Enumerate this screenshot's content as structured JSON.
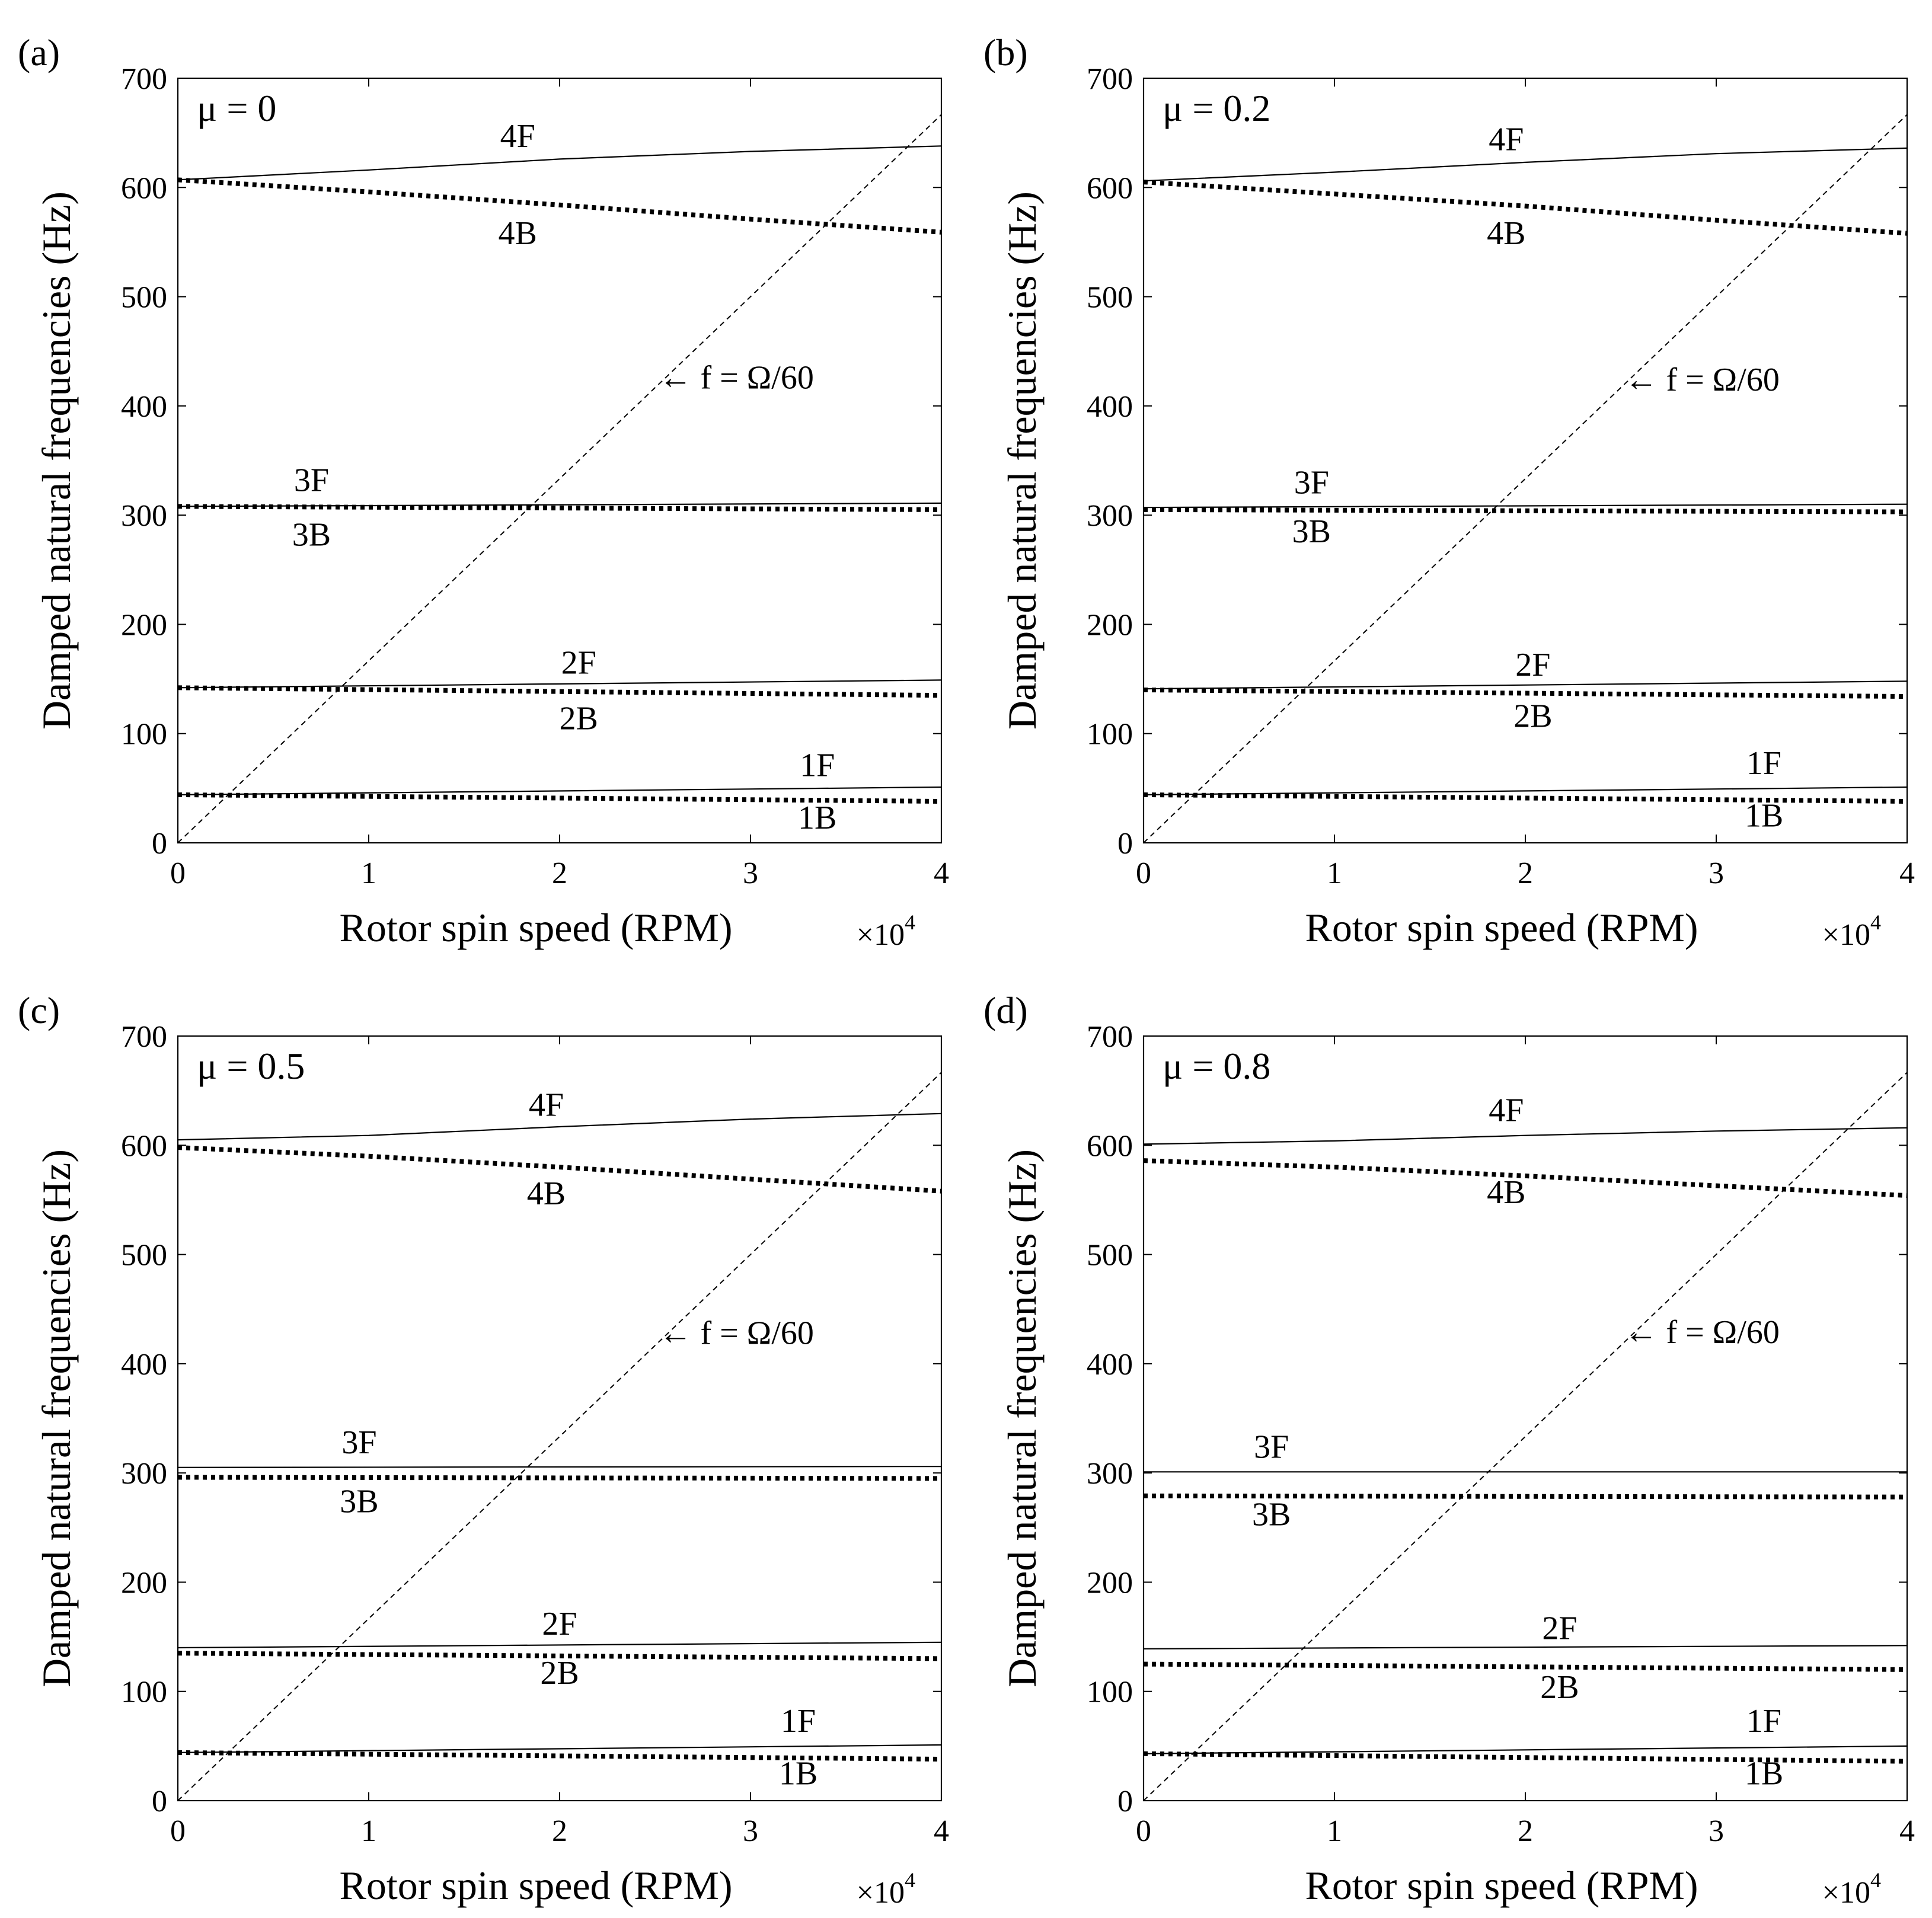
{
  "figure_title": "",
  "chart_data": [
    {
      "type": "line",
      "panel_label": "(a)",
      "mu_label": "μ = 0",
      "xlabel": "Rotor spin speed (RPM)",
      "ylabel": "Damped natural frequencies (Hz)",
      "x_multiplier_label": "×10",
      "x_multiplier_exp": "4",
      "xlim": [
        0,
        40000
      ],
      "ylim": [
        0,
        700
      ],
      "xtick_values": [
        0,
        10000,
        20000,
        30000,
        40000
      ],
      "xtick_labels": [
        "0",
        "1",
        "2",
        "3",
        "4"
      ],
      "ytick_values": [
        0,
        100,
        200,
        300,
        400,
        500,
        600,
        700
      ],
      "ytick_labels": [
        "0",
        "100",
        "200",
        "300",
        "400",
        "500",
        "600",
        "700"
      ],
      "series": [
        {
          "name": "4F",
          "style": "solid",
          "x": [
            0,
            10000,
            20000,
            30000,
            40000
          ],
          "values": [
            607,
            616,
            626,
            633,
            638
          ]
        },
        {
          "name": "4B",
          "style": "dotted",
          "x": [
            0,
            10000,
            20000,
            30000,
            40000
          ],
          "values": [
            607,
            596,
            584,
            571,
            559
          ]
        },
        {
          "name": "3F",
          "style": "solid",
          "x": [
            0,
            40000
          ],
          "values": [
            308,
            311
          ]
        },
        {
          "name": "3B",
          "style": "dotted",
          "x": [
            0,
            40000
          ],
          "values": [
            308,
            305
          ]
        },
        {
          "name": "2F",
          "style": "solid",
          "x": [
            0,
            40000
          ],
          "values": [
            142,
            149
          ]
        },
        {
          "name": "2B",
          "style": "dotted",
          "x": [
            0,
            40000
          ],
          "values": [
            142,
            135
          ]
        },
        {
          "name": "1F",
          "style": "solid",
          "x": [
            0,
            40000
          ],
          "values": [
            44,
            51
          ]
        },
        {
          "name": "1B",
          "style": "dotted",
          "x": [
            0,
            40000
          ],
          "values": [
            44,
            38
          ]
        },
        {
          "name": "f = Ω/60",
          "style": "dashed",
          "x": [
            0,
            40000
          ],
          "values": [
            0,
            666.7
          ]
        }
      ],
      "annotations": [
        {
          "text": "4F",
          "x": 17800,
          "y": 637
        },
        {
          "text": "4B",
          "x": 17800,
          "y": 548
        },
        {
          "text": "3F",
          "x": 7000,
          "y": 322
        },
        {
          "text": "3B",
          "x": 7000,
          "y": 272
        },
        {
          "text": "2F",
          "x": 21000,
          "y": 155
        },
        {
          "text": "2B",
          "x": 21000,
          "y": 104
        },
        {
          "text": "1F",
          "x": 33500,
          "y": 61
        },
        {
          "text": "1B",
          "x": 33500,
          "y": 13
        },
        {
          "text": "← f = Ω/60",
          "x": 25200,
          "y": 416
        }
      ]
    },
    {
      "type": "line",
      "panel_label": "(b)",
      "mu_label": "μ = 0.2",
      "xlabel": "Rotor spin speed (RPM)",
      "ylabel": "Damped natural frequencies (Hz)",
      "x_multiplier_label": "×10",
      "x_multiplier_exp": "4",
      "xlim": [
        0,
        40000
      ],
      "ylim": [
        0,
        700
      ],
      "xtick_values": [
        0,
        10000,
        20000,
        30000,
        40000
      ],
      "xtick_labels": [
        "0",
        "1",
        "2",
        "3",
        "4"
      ],
      "ytick_values": [
        0,
        100,
        200,
        300,
        400,
        500,
        600,
        700
      ],
      "ytick_labels": [
        "0",
        "100",
        "200",
        "300",
        "400",
        "500",
        "600",
        "700"
      ],
      "series": [
        {
          "name": "4F",
          "style": "solid",
          "x": [
            0,
            10000,
            20000,
            30000,
            40000
          ],
          "values": [
            606,
            614,
            623,
            631,
            636
          ]
        },
        {
          "name": "4B",
          "style": "dotted",
          "x": [
            0,
            10000,
            20000,
            30000,
            40000
          ],
          "values": [
            605,
            594,
            583,
            570,
            558
          ]
        },
        {
          "name": "3F",
          "style": "solid",
          "x": [
            0,
            40000
          ],
          "values": [
            307,
            310
          ]
        },
        {
          "name": "3B",
          "style": "dotted",
          "x": [
            0,
            40000
          ],
          "values": [
            305,
            303
          ]
        },
        {
          "name": "2F",
          "style": "solid",
          "x": [
            0,
            40000
          ],
          "values": [
            141,
            148
          ]
        },
        {
          "name": "2B",
          "style": "dotted",
          "x": [
            0,
            40000
          ],
          "values": [
            140,
            134
          ]
        },
        {
          "name": "1F",
          "style": "solid",
          "x": [
            0,
            40000
          ],
          "values": [
            44,
            51
          ]
        },
        {
          "name": "1B",
          "style": "dotted",
          "x": [
            0,
            40000
          ],
          "values": [
            44,
            38
          ]
        },
        {
          "name": "f = Ω/60",
          "style": "dashed",
          "x": [
            0,
            40000
          ],
          "values": [
            0,
            666.7
          ]
        }
      ],
      "annotations": [
        {
          "text": "4F",
          "x": 19000,
          "y": 634
        },
        {
          "text": "4B",
          "x": 19000,
          "y": 548
        },
        {
          "text": "3F",
          "x": 8800,
          "y": 320
        },
        {
          "text": "3B",
          "x": 8800,
          "y": 275
        },
        {
          "text": "2F",
          "x": 20400,
          "y": 153
        },
        {
          "text": "2B",
          "x": 20400,
          "y": 106
        },
        {
          "text": "1F",
          "x": 32500,
          "y": 63
        },
        {
          "text": "1B",
          "x": 32500,
          "y": 15
        },
        {
          "text": "← f = Ω/60",
          "x": 25200,
          "y": 414
        }
      ]
    },
    {
      "type": "line",
      "panel_label": "(c)",
      "mu_label": "μ = 0.5",
      "xlabel": "Rotor spin speed (RPM)",
      "ylabel": "Damped natural frequencies (Hz)",
      "x_multiplier_label": "×10",
      "x_multiplier_exp": "4",
      "xlim": [
        0,
        40000
      ],
      "ylim": [
        0,
        700
      ],
      "xtick_values": [
        0,
        10000,
        20000,
        30000,
        40000
      ],
      "xtick_labels": [
        "0",
        "1",
        "2",
        "3",
        "4"
      ],
      "ytick_values": [
        0,
        100,
        200,
        300,
        400,
        500,
        600,
        700
      ],
      "ytick_labels": [
        "0",
        "100",
        "200",
        "300",
        "400",
        "500",
        "600",
        "700"
      ],
      "series": [
        {
          "name": "4F",
          "style": "solid",
          "x": [
            0,
            10000,
            20000,
            30000,
            40000
          ],
          "values": [
            605,
            609,
            617,
            624,
            629
          ]
        },
        {
          "name": "4B",
          "style": "dotted",
          "x": [
            0,
            10000,
            20000,
            30000,
            40000
          ],
          "values": [
            598,
            590,
            580,
            569,
            558
          ]
        },
        {
          "name": "3F",
          "style": "solid",
          "x": [
            0,
            40000
          ],
          "values": [
            305,
            306
          ]
        },
        {
          "name": "3B",
          "style": "dotted",
          "x": [
            0,
            40000
          ],
          "values": [
            296,
            295
          ]
        },
        {
          "name": "2F",
          "style": "solid",
          "x": [
            0,
            40000
          ],
          "values": [
            140,
            145
          ]
        },
        {
          "name": "2B",
          "style": "dotted",
          "x": [
            0,
            40000
          ],
          "values": [
            135,
            130
          ]
        },
        {
          "name": "1F",
          "style": "solid",
          "x": [
            0,
            40000
          ],
          "values": [
            44,
            51
          ]
        },
        {
          "name": "1B",
          "style": "dotted",
          "x": [
            0,
            40000
          ],
          "values": [
            44,
            38
          ]
        },
        {
          "name": "f = Ω/60",
          "style": "dashed",
          "x": [
            0,
            40000
          ],
          "values": [
            0,
            666.7
          ]
        }
      ],
      "annotations": [
        {
          "text": "4F",
          "x": 19300,
          "y": 627
        },
        {
          "text": "4B",
          "x": 19300,
          "y": 546
        },
        {
          "text": "3F",
          "x": 9500,
          "y": 318
        },
        {
          "text": "3B",
          "x": 9500,
          "y": 264
        },
        {
          "text": "2F",
          "x": 20000,
          "y": 152
        },
        {
          "text": "2B",
          "x": 20000,
          "y": 107
        },
        {
          "text": "1F",
          "x": 32500,
          "y": 63
        },
        {
          "text": "1B",
          "x": 32500,
          "y": 15
        },
        {
          "text": "← f = Ω/60",
          "x": 25200,
          "y": 418
        }
      ]
    },
    {
      "type": "line",
      "panel_label": "(d)",
      "mu_label": "μ = 0.8",
      "xlabel": "Rotor spin speed (RPM)",
      "ylabel": "Damped natural frequencies (Hz)",
      "x_multiplier_label": "×10",
      "x_multiplier_exp": "4",
      "xlim": [
        0,
        40000
      ],
      "ylim": [
        0,
        700
      ],
      "xtick_values": [
        0,
        10000,
        20000,
        30000,
        40000
      ],
      "xtick_labels": [
        "0",
        "1",
        "2",
        "3",
        "4"
      ],
      "ytick_values": [
        0,
        100,
        200,
        300,
        400,
        500,
        600,
        700
      ],
      "ytick_labels": [
        "0",
        "100",
        "200",
        "300",
        "400",
        "500",
        "600",
        "700"
      ],
      "series": [
        {
          "name": "4F",
          "style": "solid",
          "x": [
            0,
            10000,
            20000,
            30000,
            40000
          ],
          "values": [
            601,
            604,
            609,
            613,
            616
          ]
        },
        {
          "name": "4B",
          "style": "dotted",
          "x": [
            0,
            10000,
            20000,
            30000,
            40000
          ],
          "values": [
            586,
            580,
            572,
            563,
            554
          ]
        },
        {
          "name": "3F",
          "style": "solid",
          "x": [
            0,
            40000
          ],
          "values": [
            301,
            301
          ]
        },
        {
          "name": "3B",
          "style": "dotted",
          "x": [
            0,
            40000
          ],
          "values": [
            279,
            278
          ]
        },
        {
          "name": "2F",
          "style": "solid",
          "x": [
            0,
            40000
          ],
          "values": [
            139,
            142
          ]
        },
        {
          "name": "2B",
          "style": "dotted",
          "x": [
            0,
            40000
          ],
          "values": [
            125,
            120
          ]
        },
        {
          "name": "1F",
          "style": "solid",
          "x": [
            0,
            40000
          ],
          "values": [
            43,
            50
          ]
        },
        {
          "name": "1B",
          "style": "dotted",
          "x": [
            0,
            40000
          ],
          "values": [
            43,
            36
          ]
        },
        {
          "name": "f = Ω/60",
          "style": "dashed",
          "x": [
            0,
            40000
          ],
          "values": [
            0,
            666.7
          ]
        }
      ],
      "annotations": [
        {
          "text": "4F",
          "x": 19000,
          "y": 622
        },
        {
          "text": "4B",
          "x": 19000,
          "y": 547
        },
        {
          "text": "3F",
          "x": 6700,
          "y": 314
        },
        {
          "text": "3B",
          "x": 6700,
          "y": 252
        },
        {
          "text": "2F",
          "x": 21800,
          "y": 148
        },
        {
          "text": "2B",
          "x": 21800,
          "y": 94
        },
        {
          "text": "1F",
          "x": 32500,
          "y": 63
        },
        {
          "text": "1B",
          "x": 32500,
          "y": 15
        },
        {
          "text": "← f = Ω/60",
          "x": 25200,
          "y": 419
        }
      ]
    }
  ]
}
